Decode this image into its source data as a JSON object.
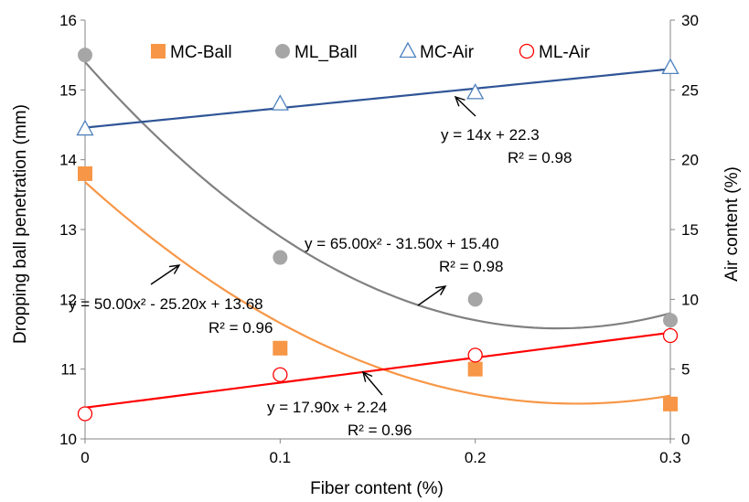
{
  "chart_data": {
    "type": "scatter",
    "xlabel": "Fiber content (%)",
    "ylabel_left": "Dropping ball penetration (mm)",
    "ylabel_right": "Air content (%)",
    "x_ticks": [
      "0",
      "0.1",
      "0.2",
      "0.3"
    ],
    "y_left_ticks": [
      "10",
      "11",
      "12",
      "13",
      "14",
      "15",
      "16"
    ],
    "y_right_ticks": [
      "0",
      "5",
      "10",
      "15",
      "20",
      "25",
      "30"
    ],
    "xlim": [
      0,
      0.3
    ],
    "ylim_left": [
      10,
      16
    ],
    "ylim_right": [
      0,
      30
    ],
    "legend_position": "top",
    "series": [
      {
        "name": "MC-Ball",
        "axis": "left",
        "marker": "square",
        "color": "#F79646",
        "x": [
          0,
          0.1,
          0.2,
          0.3
        ],
        "y": [
          13.8,
          11.3,
          11.0,
          10.5
        ],
        "trend": {
          "type": "poly2",
          "a": 50.0,
          "b": -25.2,
          "c": 13.68,
          "color": "#F79646"
        }
      },
      {
        "name": "ML_Ball",
        "axis": "left",
        "marker": "circle",
        "color": "#A6A6A6",
        "x": [
          0,
          0.1,
          0.2,
          0.3
        ],
        "y": [
          15.5,
          12.6,
          12.0,
          11.7
        ],
        "trend": {
          "type": "poly2",
          "a": 65.0,
          "b": -31.5,
          "c": 15.4,
          "color": "#808080"
        }
      },
      {
        "name": "MC-Air",
        "axis": "right",
        "marker": "triangle-open",
        "color": "#4F81BD",
        "x": [
          0,
          0.1,
          0.2,
          0.3
        ],
        "y": [
          22.2,
          24.0,
          24.8,
          26.6
        ],
        "trend": {
          "type": "linear",
          "m": 14,
          "b": 22.3,
          "color": "#2F5597"
        }
      },
      {
        "name": "ML-Air",
        "axis": "right",
        "marker": "circle-open",
        "color": "#FF0000",
        "x": [
          0,
          0.1,
          0.2,
          0.3
        ],
        "y": [
          1.8,
          4.6,
          6.0,
          7.4
        ],
        "trend": {
          "type": "linear",
          "m": 17.9,
          "b": 2.24,
          "color": "#FF0000"
        }
      }
    ],
    "annotations": [
      {
        "line1": "y = 14x  + 22.3",
        "line2": "R² = 0.98"
      },
      {
        "line1": "y = 65.00x² - 31.50x  + 15.40",
        "line2": "R² = 0.98"
      },
      {
        "line1": "y = 50.00x² - 25.20x  + 13.68",
        "line2": "R² = 0.96"
      },
      {
        "line1": "y = 17.90x  + 2.24",
        "line2": "R² = 0.96"
      }
    ]
  }
}
